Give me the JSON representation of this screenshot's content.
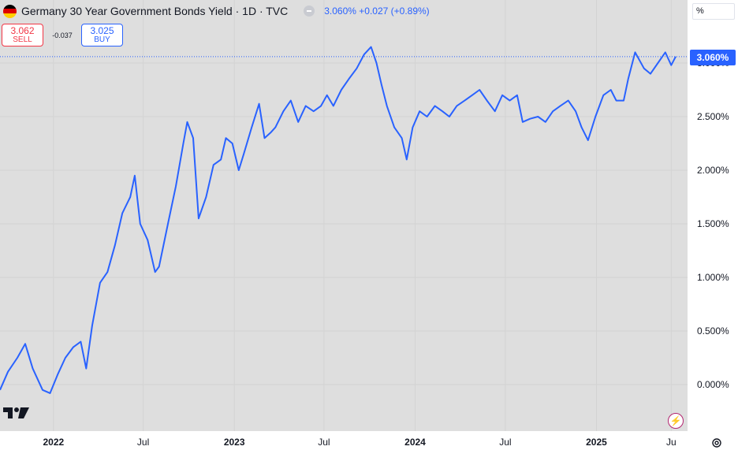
{
  "header": {
    "title": "Germany 30 Year Government Bonds Yield · 1D · TVC",
    "quote": "3.060%  +0.027 (+0.89%)",
    "flag_colors": [
      "#000000",
      "#dd0000",
      "#ffce00"
    ]
  },
  "trade": {
    "sell_price": "3.062",
    "sell_label": "SELL",
    "spread": "-0.037",
    "buy_price": "3.025",
    "buy_label": "BUY"
  },
  "price_scale": {
    "unit": "%",
    "current_label": "3.060%"
  },
  "colors": {
    "line": "#2962ff",
    "background": "#dedede",
    "grid": "#d3d3d3",
    "accent": "#2962ff",
    "sell": "#f23645"
  },
  "icons": [
    "germany-flag-icon",
    "tradingview-logo-icon",
    "flash-icon",
    "settings-icon"
  ],
  "chart_data": {
    "type": "line",
    "title": "Germany 30 Year Government Bonds Yield · 1D · TVC",
    "xlabel": "",
    "ylabel": "",
    "ylim": [
      -0.3,
      3.3
    ],
    "yticks": [
      "0.000%",
      "0.500%",
      "1.000%",
      "1.500%",
      "2.000%",
      "2.500%",
      "3.000%"
    ],
    "ytick_values": [
      0.0,
      0.5,
      1.0,
      1.5,
      2.0,
      2.5,
      3.0
    ],
    "xticks": [
      {
        "label": "2022",
        "date": "2022-01-01",
        "bold": true
      },
      {
        "label": "Jul",
        "date": "2022-07-01",
        "bold": false
      },
      {
        "label": "2023",
        "date": "2023-01-01",
        "bold": true
      },
      {
        "label": "Jul",
        "date": "2023-07-01",
        "bold": false
      },
      {
        "label": "2024",
        "date": "2024-01-01",
        "bold": true
      },
      {
        "label": "Jul",
        "date": "2024-07-01",
        "bold": false
      },
      {
        "label": "2025",
        "date": "2025-01-01",
        "bold": true
      },
      {
        "label": "Ju",
        "date": "2025-06-01",
        "bold": false
      }
    ],
    "last_value": 3.06,
    "grid": true,
    "series": [
      {
        "x": [
          "2021-09-15",
          "2021-10-01",
          "2021-10-20",
          "2021-11-05",
          "2021-11-20",
          "2021-12-10",
          "2021-12-25",
          "2022-01-10",
          "2022-01-25",
          "2022-02-10",
          "2022-02-25",
          "2022-03-08",
          "2022-03-20",
          "2022-04-05",
          "2022-04-20",
          "2022-05-05",
          "2022-05-20",
          "2022-06-05",
          "2022-06-14",
          "2022-06-25",
          "2022-07-10",
          "2022-07-25",
          "2022-08-02",
          "2022-08-20",
          "2022-09-05",
          "2022-09-20",
          "2022-09-28",
          "2022-10-10",
          "2022-10-21",
          "2022-11-05",
          "2022-11-20",
          "2022-12-05",
          "2022-12-15",
          "2022-12-28",
          "2023-01-10",
          "2023-01-20",
          "2023-02-05",
          "2023-02-20",
          "2023-03-03",
          "2023-03-15",
          "2023-03-25",
          "2023-04-10",
          "2023-04-25",
          "2023-05-10",
          "2023-05-25",
          "2023-06-10",
          "2023-06-25",
          "2023-07-07",
          "2023-07-20",
          "2023-08-05",
          "2023-08-20",
          "2023-09-05",
          "2023-09-20",
          "2023-10-04",
          "2023-10-15",
          "2023-10-25",
          "2023-11-05",
          "2023-11-20",
          "2023-12-05",
          "2023-12-15",
          "2023-12-27",
          "2024-01-10",
          "2024-01-25",
          "2024-02-10",
          "2024-02-25",
          "2024-03-10",
          "2024-03-25",
          "2024-04-10",
          "2024-04-25",
          "2024-05-10",
          "2024-05-25",
          "2024-06-10",
          "2024-06-25",
          "2024-07-10",
          "2024-07-25",
          "2024-08-05",
          "2024-08-20",
          "2024-09-05",
          "2024-09-20",
          "2024-10-05",
          "2024-10-20",
          "2024-11-05",
          "2024-11-20",
          "2024-12-02",
          "2024-12-15",
          "2024-12-30",
          "2025-01-15",
          "2025-01-30",
          "2025-02-10",
          "2025-02-25",
          "2025-03-06",
          "2025-03-20",
          "2025-04-07",
          "2025-04-20",
          "2025-05-05",
          "2025-05-20",
          "2025-06-01",
          "2025-06-10"
        ],
        "y": [
          -0.05,
          0.12,
          0.25,
          0.38,
          0.15,
          -0.05,
          -0.08,
          0.1,
          0.25,
          0.35,
          0.4,
          0.15,
          0.55,
          0.95,
          1.05,
          1.3,
          1.6,
          1.75,
          1.95,
          1.5,
          1.35,
          1.05,
          1.1,
          1.5,
          1.85,
          2.25,
          2.45,
          2.3,
          1.55,
          1.75,
          2.05,
          2.1,
          2.3,
          2.25,
          2.0,
          2.15,
          2.4,
          2.62,
          2.3,
          2.35,
          2.4,
          2.55,
          2.65,
          2.45,
          2.6,
          2.55,
          2.6,
          2.7,
          2.6,
          2.75,
          2.85,
          2.95,
          3.08,
          3.15,
          3.0,
          2.8,
          2.6,
          2.4,
          2.3,
          2.1,
          2.4,
          2.55,
          2.5,
          2.6,
          2.55,
          2.5,
          2.6,
          2.65,
          2.7,
          2.75,
          2.65,
          2.55,
          2.7,
          2.65,
          2.7,
          2.45,
          2.48,
          2.5,
          2.45,
          2.55,
          2.6,
          2.65,
          2.55,
          2.4,
          2.28,
          2.5,
          2.7,
          2.75,
          2.65,
          2.65,
          2.85,
          3.1,
          2.95,
          2.9,
          3.0,
          3.1,
          2.98,
          3.06
        ]
      }
    ]
  }
}
